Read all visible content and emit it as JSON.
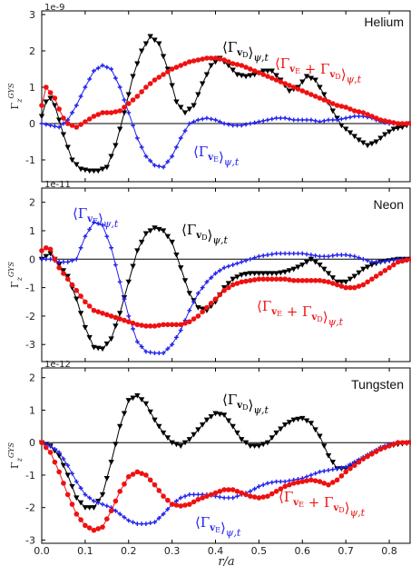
{
  "chart_data": [
    {
      "type": "line",
      "element": "Helium",
      "exponent": "1e-9",
      "ylabel": "Γ_z^GYS",
      "ylim": [
        -1.6,
        3.1
      ],
      "yticks": [
        "3",
        "2",
        "1",
        "0",
        "-1"
      ],
      "yticks_values": [
        3,
        2,
        1,
        0,
        -1
      ],
      "xlim": [
        0,
        0.85
      ],
      "grid": false,
      "series": [
        {
          "name": "⟨Γ_vD⟩ψ,t",
          "color": "#000000",
          "marker": "triangle-down",
          "x": [
            0,
            0.01,
            0.02,
            0.03,
            0.05,
            0.07,
            0.09,
            0.11,
            0.13,
            0.15,
            0.17,
            0.19,
            0.21,
            0.23,
            0.25,
            0.27,
            0.29,
            0.31,
            0.33,
            0.35,
            0.37,
            0.39,
            0.41,
            0.43,
            0.45,
            0.47,
            0.49,
            0.51,
            0.53,
            0.55,
            0.57,
            0.59,
            0.61,
            0.63,
            0.65,
            0.67,
            0.69,
            0.71,
            0.73,
            0.75,
            0.77,
            0.79,
            0.81,
            0.83,
            0.85
          ],
          "y": [
            0.2,
            0.6,
            0.7,
            0.5,
            -0.3,
            -1.0,
            -1.25,
            -1.3,
            -1.3,
            -1.2,
            -0.6,
            0.3,
            1.3,
            2.0,
            2.4,
            2.2,
            1.5,
            0.6,
            0.3,
            0.5,
            1.1,
            1.6,
            1.8,
            1.6,
            1.35,
            1.3,
            1.35,
            1.45,
            1.45,
            1.2,
            0.9,
            1.0,
            1.3,
            1.2,
            0.8,
            0.35,
            -0.05,
            -0.25,
            -0.45,
            -0.6,
            -0.5,
            -0.3,
            -0.15,
            -0.1,
            0.0
          ]
        },
        {
          "name": "⟨Γ_vE⟩ψ,t",
          "color": "#2222ee",
          "marker": "plus",
          "x": [
            0,
            0.02,
            0.04,
            0.06,
            0.08,
            0.1,
            0.12,
            0.14,
            0.16,
            0.18,
            0.2,
            0.22,
            0.24,
            0.26,
            0.28,
            0.3,
            0.32,
            0.34,
            0.36,
            0.38,
            0.4,
            0.42,
            0.44,
            0.46,
            0.48,
            0.5,
            0.52,
            0.54,
            0.56,
            0.58,
            0.6,
            0.62,
            0.64,
            0.66,
            0.68,
            0.7,
            0.72,
            0.74,
            0.76,
            0.78,
            0.8,
            0.82,
            0.85
          ],
          "y": [
            0.0,
            -0.05,
            -0.1,
            0.1,
            0.5,
            1.0,
            1.45,
            1.6,
            1.5,
            1.0,
            0.3,
            -0.4,
            -0.9,
            -1.15,
            -1.2,
            -0.9,
            -0.4,
            0.0,
            0.1,
            0.15,
            0.1,
            0.0,
            -0.05,
            -0.05,
            0.0,
            0.05,
            0.1,
            0.15,
            0.15,
            0.1,
            0.1,
            0.1,
            0.05,
            0.1,
            0.1,
            0.15,
            0.2,
            0.2,
            0.15,
            0.05,
            0.0,
            0.0,
            0.0
          ]
        },
        {
          "name": "⟨Γ_vE + Γ_vD⟩ψ,t",
          "color": "#ee1111",
          "marker": "circle",
          "x": [
            0,
            0.01,
            0.02,
            0.03,
            0.04,
            0.05,
            0.06,
            0.08,
            0.1,
            0.12,
            0.14,
            0.16,
            0.18,
            0.2,
            0.22,
            0.24,
            0.26,
            0.28,
            0.3,
            0.32,
            0.34,
            0.36,
            0.38,
            0.4,
            0.42,
            0.44,
            0.46,
            0.48,
            0.5,
            0.52,
            0.54,
            0.56,
            0.58,
            0.6,
            0.62,
            0.64,
            0.66,
            0.68,
            0.7,
            0.72,
            0.74,
            0.76,
            0.78,
            0.8,
            0.82,
            0.85
          ],
          "y": [
            0.5,
            1.0,
            0.85,
            0.7,
            0.4,
            0.15,
            0.0,
            -0.1,
            0.05,
            0.2,
            0.3,
            0.3,
            0.35,
            0.55,
            0.75,
            1.0,
            1.2,
            1.35,
            1.5,
            1.6,
            1.7,
            1.75,
            1.8,
            1.8,
            1.75,
            1.65,
            1.6,
            1.5,
            1.4,
            1.3,
            1.2,
            1.1,
            1.0,
            0.9,
            0.8,
            0.7,
            0.6,
            0.5,
            0.45,
            0.35,
            0.3,
            0.2,
            0.1,
            0.05,
            0.0,
            0.0
          ]
        }
      ],
      "annotations": [
        {
          "text": "⟨Γ_vD⟩ψ,t",
          "color": "#000000"
        },
        {
          "text": "⟨Γ_vE + Γ_vD⟩ψ,t",
          "color": "#ee1111"
        },
        {
          "text": "⟨Γ_vE⟩ψ,t",
          "color": "#2222ee"
        }
      ]
    },
    {
      "type": "line",
      "element": "Neon",
      "exponent": "1e-11",
      "ylabel": "Γ_z^GYS",
      "ylim": [
        -3.6,
        2.5
      ],
      "yticks": [
        "2",
        "1",
        "0",
        "-1",
        "-2",
        "-3"
      ],
      "yticks_values": [
        2,
        1,
        0,
        -1,
        -2,
        -3
      ],
      "xlim": [
        0,
        0.85
      ],
      "grid": false,
      "series": [
        {
          "name": "⟨Γ_vD⟩ψ,t",
          "color": "#000000",
          "marker": "triangle-down",
          "x": [
            0,
            0.02,
            0.04,
            0.06,
            0.08,
            0.1,
            0.12,
            0.14,
            0.16,
            0.18,
            0.2,
            0.22,
            0.24,
            0.26,
            0.28,
            0.3,
            0.32,
            0.34,
            0.36,
            0.38,
            0.4,
            0.42,
            0.44,
            0.46,
            0.48,
            0.5,
            0.52,
            0.54,
            0.56,
            0.58,
            0.6,
            0.62,
            0.64,
            0.66,
            0.68,
            0.7,
            0.72,
            0.74,
            0.76,
            0.78,
            0.8,
            0.82,
            0.85
          ],
          "y": [
            0.0,
            0.2,
            -0.2,
            -0.6,
            -1.4,
            -2.4,
            -3.1,
            -3.15,
            -2.8,
            -1.9,
            -0.8,
            0.3,
            0.9,
            1.1,
            1.0,
            0.6,
            -0.3,
            -1.2,
            -1.7,
            -1.8,
            -1.5,
            -1.0,
            -0.7,
            -0.55,
            -0.5,
            -0.5,
            -0.5,
            -0.5,
            -0.45,
            -0.35,
            -0.2,
            0.0,
            -0.2,
            -0.5,
            -0.8,
            -0.8,
            -0.6,
            -0.35,
            -0.2,
            -0.1,
            -0.05,
            0.0,
            0.0
          ]
        },
        {
          "name": "⟨Γ_vE⟩ψ,t",
          "color": "#2222ee",
          "marker": "plus",
          "x": [
            0,
            0.02,
            0.04,
            0.06,
            0.08,
            0.1,
            0.12,
            0.14,
            0.16,
            0.18,
            0.2,
            0.22,
            0.24,
            0.26,
            0.28,
            0.3,
            0.32,
            0.34,
            0.36,
            0.38,
            0.4,
            0.42,
            0.44,
            0.46,
            0.48,
            0.5,
            0.52,
            0.54,
            0.56,
            0.58,
            0.6,
            0.62,
            0.64,
            0.66,
            0.68,
            0.7,
            0.72,
            0.74,
            0.76,
            0.78,
            0.8,
            0.82,
            0.85
          ],
          "y": [
            0.0,
            0.0,
            -0.1,
            -0.1,
            0.0,
            0.8,
            1.3,
            1.2,
            0.4,
            -0.8,
            -2.0,
            -2.9,
            -3.25,
            -3.3,
            -3.3,
            -3.0,
            -2.5,
            -1.8,
            -1.2,
            -0.8,
            -0.5,
            -0.3,
            -0.2,
            -0.1,
            0.0,
            0.1,
            0.15,
            0.2,
            0.2,
            0.2,
            0.2,
            0.15,
            0.1,
            0.1,
            0.15,
            0.15,
            0.1,
            0.0,
            -0.1,
            -0.1,
            -0.05,
            0.0,
            0.0
          ]
        },
        {
          "name": "⟨Γ_vE + Γ_vD⟩ψ,t",
          "color": "#ee1111",
          "marker": "circle",
          "x": [
            0,
            0.01,
            0.02,
            0.03,
            0.04,
            0.06,
            0.08,
            0.1,
            0.12,
            0.14,
            0.16,
            0.18,
            0.2,
            0.22,
            0.24,
            0.26,
            0.28,
            0.3,
            0.32,
            0.34,
            0.36,
            0.38,
            0.4,
            0.42,
            0.44,
            0.46,
            0.48,
            0.5,
            0.52,
            0.54,
            0.56,
            0.58,
            0.6,
            0.62,
            0.64,
            0.66,
            0.68,
            0.7,
            0.72,
            0.74,
            0.76,
            0.78,
            0.8,
            0.82,
            0.85
          ],
          "y": [
            0.3,
            0.4,
            0.35,
            0.0,
            -0.3,
            -0.7,
            -1.1,
            -1.5,
            -1.8,
            -1.9,
            -2.0,
            -2.1,
            -2.2,
            -2.3,
            -2.35,
            -2.35,
            -2.3,
            -2.3,
            -2.3,
            -2.2,
            -2.0,
            -1.7,
            -1.4,
            -1.1,
            -0.9,
            -0.8,
            -0.75,
            -0.7,
            -0.7,
            -0.7,
            -0.7,
            -0.75,
            -0.75,
            -0.75,
            -0.75,
            -0.8,
            -0.9,
            -1.0,
            -1.0,
            -0.9,
            -0.7,
            -0.5,
            -0.3,
            -0.1,
            0.0
          ]
        }
      ],
      "annotations": [
        {
          "text": "⟨Γ_vE⟩ψ,t",
          "color": "#2222ee"
        },
        {
          "text": "⟨Γ_vD⟩ψ,t",
          "color": "#000000"
        },
        {
          "text": "⟨Γ_vE + Γ_vD⟩ψ,t",
          "color": "#ee1111"
        }
      ]
    },
    {
      "type": "line",
      "element": "Tungsten",
      "exponent": "1e-12",
      "ylabel": "Γ_z^GYS",
      "ylim": [
        -3.1,
        2.3
      ],
      "yticks": [
        "2",
        "1",
        "0",
        "-1",
        "-2",
        "-3"
      ],
      "yticks_values": [
        2,
        1,
        0,
        -1,
        -2,
        -3
      ],
      "xlim": [
        0,
        0.85
      ],
      "xticks": [
        "0.0",
        "0.1",
        "0.2",
        "0.3",
        "0.4",
        "0.5",
        "0.6",
        "0.7",
        "0.8"
      ],
      "xticks_values": [
        0,
        0.1,
        0.2,
        0.3,
        0.4,
        0.5,
        0.6,
        0.7,
        0.8
      ],
      "xlabel": "r/a",
      "grid": false,
      "series": [
        {
          "name": "⟨Γ_vD⟩ψ,t",
          "color": "#000000",
          "marker": "triangle-down",
          "x": [
            0,
            0.02,
            0.04,
            0.06,
            0.08,
            0.1,
            0.12,
            0.14,
            0.16,
            0.18,
            0.2,
            0.22,
            0.24,
            0.26,
            0.28,
            0.3,
            0.32,
            0.34,
            0.36,
            0.38,
            0.4,
            0.42,
            0.44,
            0.46,
            0.48,
            0.5,
            0.52,
            0.54,
            0.56,
            0.58,
            0.6,
            0.62,
            0.64,
            0.66,
            0.68,
            0.7,
            0.72,
            0.74,
            0.76,
            0.78,
            0.8,
            0.82,
            0.85
          ],
          "y": [
            0.0,
            -0.1,
            -0.4,
            -1.0,
            -1.7,
            -2.0,
            -2.0,
            -1.6,
            -0.6,
            0.5,
            1.3,
            1.45,
            1.2,
            0.7,
            0.3,
            0.0,
            -0.1,
            0.1,
            0.4,
            0.7,
            0.9,
            0.85,
            0.5,
            0.1,
            -0.1,
            -0.1,
            0.0,
            0.3,
            0.55,
            0.7,
            0.75,
            0.6,
            0.2,
            -0.4,
            -0.8,
            -0.8,
            -0.65,
            -0.5,
            -0.35,
            -0.2,
            -0.1,
            -0.05,
            0.0
          ]
        },
        {
          "name": "⟨Γ_vE⟩ψ,t",
          "color": "#2222ee",
          "marker": "plus",
          "x": [
            0,
            0.02,
            0.04,
            0.06,
            0.08,
            0.1,
            0.12,
            0.14,
            0.16,
            0.18,
            0.2,
            0.22,
            0.24,
            0.26,
            0.28,
            0.3,
            0.32,
            0.34,
            0.36,
            0.38,
            0.4,
            0.42,
            0.44,
            0.46,
            0.48,
            0.5,
            0.52,
            0.54,
            0.56,
            0.58,
            0.6,
            0.62,
            0.64,
            0.66,
            0.68,
            0.7,
            0.72,
            0.74,
            0.76,
            0.78,
            0.8,
            0.82,
            0.85
          ],
          "y": [
            0.0,
            -0.1,
            -0.3,
            -0.7,
            -1.2,
            -1.6,
            -1.8,
            -1.9,
            -2.0,
            -2.2,
            -2.4,
            -2.5,
            -2.5,
            -2.45,
            -2.2,
            -1.9,
            -1.7,
            -1.6,
            -1.6,
            -1.6,
            -1.65,
            -1.7,
            -1.7,
            -1.6,
            -1.5,
            -1.35,
            -1.25,
            -1.2,
            -1.2,
            -1.15,
            -1.1,
            -1.0,
            -0.9,
            -0.85,
            -0.8,
            -0.75,
            -0.6,
            -0.45,
            -0.3,
            -0.15,
            -0.05,
            0.0,
            0.0
          ]
        },
        {
          "name": "⟨Γ_vE + Γ_vD⟩ψ,t",
          "color": "#ee1111",
          "marker": "circle",
          "x": [
            0,
            0.02,
            0.04,
            0.06,
            0.08,
            0.1,
            0.12,
            0.14,
            0.16,
            0.18,
            0.2,
            0.22,
            0.24,
            0.26,
            0.28,
            0.3,
            0.32,
            0.34,
            0.36,
            0.38,
            0.4,
            0.42,
            0.44,
            0.46,
            0.48,
            0.5,
            0.52,
            0.54,
            0.56,
            0.58,
            0.6,
            0.62,
            0.64,
            0.66,
            0.68,
            0.7,
            0.72,
            0.74,
            0.76,
            0.78,
            0.8,
            0.82,
            0.85
          ],
          "y": [
            0.0,
            -0.3,
            -0.9,
            -1.6,
            -2.2,
            -2.55,
            -2.7,
            -2.6,
            -2.1,
            -1.5,
            -1.05,
            -0.9,
            -1.0,
            -1.3,
            -1.65,
            -1.9,
            -1.95,
            -1.9,
            -1.75,
            -1.65,
            -1.55,
            -1.45,
            -1.45,
            -1.55,
            -1.65,
            -1.7,
            -1.65,
            -1.5,
            -1.35,
            -1.25,
            -1.2,
            -1.15,
            -1.2,
            -1.3,
            -1.15,
            -0.9,
            -0.7,
            -0.5,
            -0.35,
            -0.2,
            -0.1,
            0.0,
            0.0
          ]
        }
      ],
      "annotations": [
        {
          "text": "⟨Γ_vD⟩ψ,t",
          "color": "#000000"
        },
        {
          "text": "⟨Γ_vE + Γ_vD⟩ψ,t",
          "color": "#ee1111"
        },
        {
          "text": "⟨Γ_vE⟩ψ,t",
          "color": "#2222ee"
        }
      ]
    }
  ]
}
